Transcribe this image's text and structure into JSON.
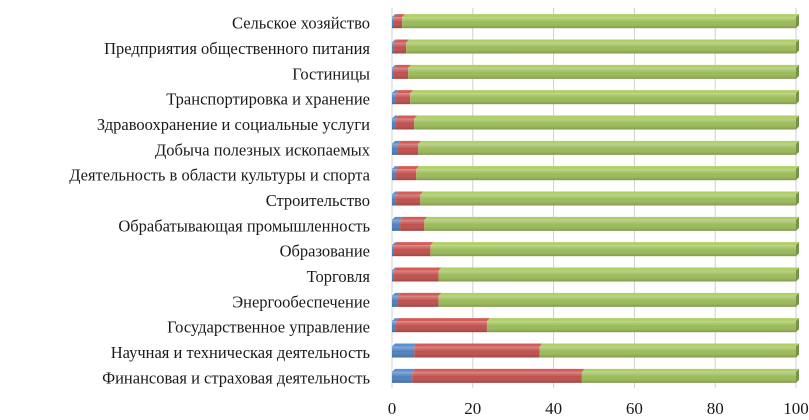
{
  "chart_data": {
    "type": "bar",
    "orientation": "horizontal",
    "stacked": true,
    "percent_stacked": true,
    "categories": [
      "Сельское хозяйство",
      "Предприятия общественного питания",
      "Гостиницы",
      "Транспортировка и хранение",
      "Здравоохранение и социальные услуги",
      "Добыча полезных ископаемых",
      "Деятельность в области культуры и спорта",
      "Строительство",
      "Обрабатывающая промышленность",
      "Образование",
      "Торговля",
      "Энергообеспечение",
      "Государственное управление",
      "Научная и техническая деятельность",
      "Финансовая и страховая деятельность"
    ],
    "series": [
      {
        "color": "#4f81bd",
        "values": [
          0.5,
          0.5,
          0.5,
          1.0,
          1.0,
          1.5,
          1.0,
          1.0,
          2.0,
          0.5,
          0.5,
          1.5,
          1.0,
          5.5,
          5.0
        ]
      },
      {
        "color": "#c0504d",
        "values": [
          2.0,
          3.0,
          3.5,
          3.5,
          4.5,
          5.0,
          5.0,
          6.0,
          6.0,
          9.0,
          11.0,
          10.0,
          22.5,
          31.0,
          42.0
        ]
      },
      {
        "color": "#9bbb59",
        "values": [
          97.5,
          96.5,
          96.0,
          95.5,
          94.5,
          93.5,
          94.0,
          93.0,
          92.0,
          90.5,
          88.5,
          88.5,
          76.5,
          63.5,
          53.0
        ]
      }
    ],
    "x_ticks": [
      "0",
      "20",
      "40",
      "60",
      "80",
      "100"
    ],
    "xlim": [
      0,
      100
    ],
    "grid": true,
    "legend": "none"
  }
}
